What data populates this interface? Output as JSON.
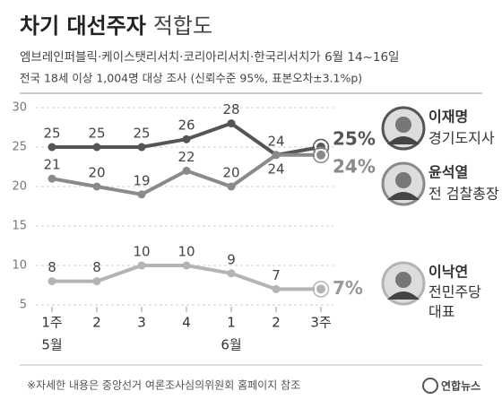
{
  "chart_data": {
    "type": "line",
    "title": "차기 대선주자",
    "title_suffix": "적합도",
    "subtitle": [
      "엠브레인퍼블릭·케이스탯리서치·코리아리서치·한국리서치가 6월 14~16일",
      "전국 18세 이상 1,004명 대상 조사 (신뢰수준 95%, 표본오차±3.1%p)"
    ],
    "categories": [
      "1주",
      "2",
      "3",
      "4",
      "1",
      "2",
      "3주"
    ],
    "months": [
      "5월",
      null,
      null,
      null,
      "6월",
      null,
      null
    ],
    "series": [
      {
        "name": "이재명",
        "role": "경기도지사",
        "color": "#555555",
        "values": [
          25,
          25,
          25,
          26,
          28,
          24,
          25
        ],
        "value_labels": [
          "25",
          "25",
          "25",
          "26",
          "28",
          "24",
          "25%"
        ]
      },
      {
        "name": "윤석열",
        "role": "전 검찰총장",
        "color": "#8a8a8a",
        "values": [
          21,
          20,
          19,
          22,
          20,
          24,
          24
        ],
        "value_labels": [
          "21",
          "20",
          "19",
          "22",
          "20",
          "24",
          "24%"
        ]
      },
      {
        "name": "이낙연",
        "role": "전민주당 대표",
        "color": "#b4b4b4",
        "values": [
          8,
          8,
          10,
          10,
          9,
          7,
          7
        ],
        "value_labels": [
          "8",
          "8",
          "10",
          "10",
          "9",
          "7",
          "7%"
        ]
      }
    ],
    "ylim": [
      5,
      30
    ],
    "yticks": [
      5,
      10,
      15,
      20,
      25,
      30
    ],
    "grid": true,
    "footnote": "※자세한 내용은 중앙선거 여론조사심의위원회 홈페이지 참조",
    "source": "연합뉴스"
  }
}
